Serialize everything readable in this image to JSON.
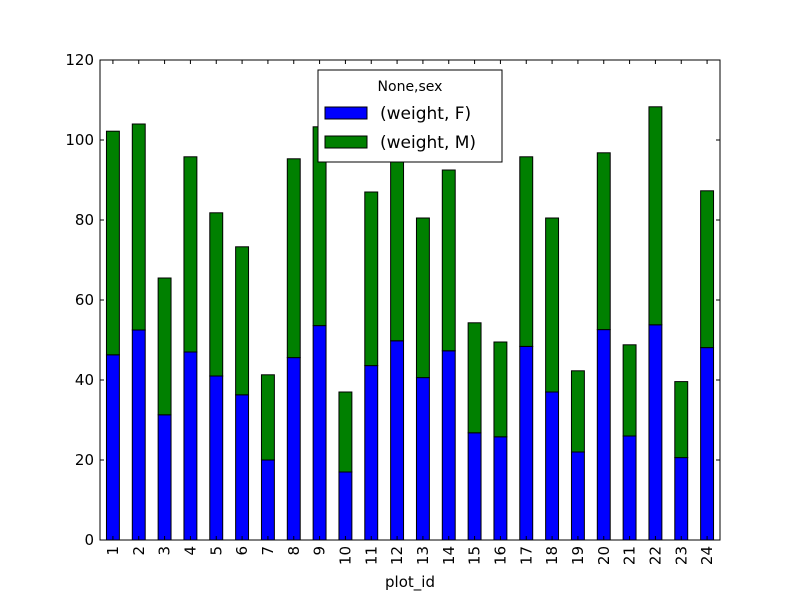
{
  "chart_data": {
    "type": "bar",
    "stacked": true,
    "title": "",
    "xlabel": "plot_id",
    "ylabel": "",
    "ylim": [
      0,
      120
    ],
    "yticks": [
      0,
      20,
      40,
      60,
      80,
      100,
      120
    ],
    "categories": [
      "1",
      "2",
      "3",
      "4",
      "5",
      "6",
      "7",
      "8",
      "9",
      "10",
      "11",
      "12",
      "13",
      "14",
      "15",
      "16",
      "17",
      "18",
      "19",
      "20",
      "21",
      "22",
      "23",
      "24"
    ],
    "series": [
      {
        "name": "(weight, F)",
        "color": "#0000ff",
        "values": [
          46.3,
          52.5,
          31.3,
          47.0,
          41.0,
          36.3,
          20.0,
          45.6,
          53.6,
          17.0,
          43.6,
          49.8,
          40.6,
          47.3,
          26.8,
          25.8,
          48.4,
          37.0,
          22.0,
          52.6,
          26.0,
          53.8,
          20.6,
          48.1
        ]
      },
      {
        "name": "(weight, M)",
        "color": "#008000",
        "values": [
          55.9,
          51.5,
          34.2,
          48.8,
          40.8,
          37.0,
          21.3,
          49.7,
          49.7,
          20.0,
          43.4,
          46.2,
          39.9,
          45.2,
          27.5,
          23.7,
          47.4,
          43.5,
          20.3,
          44.2,
          22.8,
          54.5,
          19.0,
          39.2
        ]
      }
    ],
    "legend": {
      "title": "None,sex",
      "position": "upper center"
    },
    "grid": false
  }
}
